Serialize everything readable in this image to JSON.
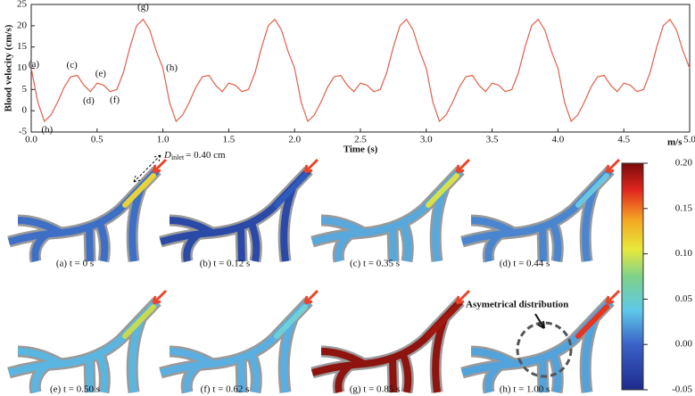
{
  "chart_data": {
    "type": "line",
    "x_label": "Time (s)",
    "y_label": "Blood velocity (cm/s)",
    "color": "#e0604a",
    "x": [
      0,
      0.05,
      0.1,
      0.15,
      0.2,
      0.25,
      0.3,
      0.35,
      0.4,
      0.45,
      0.5,
      0.55,
      0.6,
      0.65,
      0.7,
      0.75,
      0.8,
      0.85,
      0.9,
      0.95,
      1,
      1.05,
      1.1,
      1.15,
      1.2,
      1.25,
      1.3,
      1.35,
      1.4,
      1.45,
      1.5,
      1.55,
      1.6,
      1.65,
      1.7,
      1.75,
      1.8,
      1.85,
      1.9,
      1.95,
      2,
      2.05,
      2.1,
      2.15,
      2.2,
      2.25,
      2.3,
      2.35,
      2.4,
      2.45,
      2.5,
      2.55,
      2.6,
      2.65,
      2.7,
      2.75,
      2.8,
      2.85,
      2.9,
      2.95,
      3,
      3.05,
      3.1,
      3.15,
      3.2,
      3.25,
      3.3,
      3.35,
      3.4,
      3.45,
      3.5,
      3.55,
      3.6,
      3.65,
      3.7,
      3.75,
      3.8,
      3.85,
      3.9,
      3.95,
      4,
      4.05,
      4.1,
      4.15,
      4.2,
      4.25,
      4.3,
      4.35,
      4.4,
      4.45,
      4.5,
      4.55,
      4.6,
      4.65,
      4.7,
      4.75,
      4.8,
      4.85,
      4.9,
      4.95,
      5
    ],
    "values": [
      10,
      2,
      -2.5,
      -1,
      2,
      5.5,
      8,
      8.3,
      6,
      4.5,
      6.5,
      6,
      4.5,
      5,
      9,
      15,
      20,
      21.5,
      19,
      14,
      10,
      2,
      -2.5,
      -1,
      2,
      5.5,
      8,
      8.3,
      6,
      4.5,
      6.5,
      6,
      4.5,
      5,
      9,
      15,
      20,
      21.5,
      19,
      14,
      10,
      2,
      -2.5,
      -1,
      2,
      5.5,
      8,
      8.3,
      6,
      4.5,
      6.5,
      6,
      4.5,
      5,
      9,
      15,
      20,
      21.5,
      19,
      14,
      10,
      2,
      -2.5,
      -1,
      2,
      5.5,
      8,
      8.3,
      6,
      4.5,
      6.5,
      6,
      4.5,
      5,
      9,
      15,
      20,
      21.5,
      19,
      14,
      10,
      2,
      -2.5,
      -1,
      2,
      5.5,
      8,
      8.3,
      6,
      4.5,
      6.5,
      6,
      4.5,
      5,
      9,
      15,
      20,
      21.5,
      19,
      14,
      10
    ],
    "xlim": [
      0,
      5
    ],
    "ylim": [
      -5,
      25
    ],
    "xticks": [
      {
        "value": 0,
        "label": "0.0"
      },
      0.5,
      {
        "value": 1,
        "label": "1.0"
      },
      1.5,
      {
        "value": 2,
        "label": "2.0"
      },
      2.5,
      {
        "value": 3,
        "label": "3.0"
      },
      3.5,
      {
        "value": 4,
        "label": "4.0"
      },
      4.5,
      {
        "value": 5,
        "label": "5.0"
      }
    ],
    "yticks": [
      -5,
      0,
      5,
      10,
      15,
      20,
      25
    ],
    "annotations": [
      {
        "label": "(a)",
        "x": 0,
        "y": 10
      },
      {
        "label": "(b)",
        "x": 0.1,
        "y": -2.5
      },
      {
        "label": "(c)",
        "x": 0.35,
        "y": 8.3
      },
      {
        "label": "(d)",
        "x": 0.45,
        "y": 4.5
      },
      {
        "label": "(e)",
        "x": 0.5,
        "y": 6.5
      },
      {
        "label": "(f)",
        "x": 0.6,
        "y": 4.5
      },
      {
        "label": "(g)",
        "x": 0.85,
        "y": 21.5
      },
      {
        "label": "(h)",
        "x": 1,
        "y": 10
      }
    ]
  },
  "inlet_annotation": {
    "symbol": "D",
    "subscript": "inlet",
    "text": "= 0.40 cm"
  },
  "asymmetry_annotation": "Asymetrical distribution",
  "panels": [
    "(a) t = 0 s",
    "(b) t = 0.12 s",
    "(c) t = 0.35 s",
    "(d) t = 0.44 s",
    "(e) t = 0.50 s",
    "(f) t = 0.62 s",
    "(g) t = 0.85 s",
    "(h) t = 1.00 s"
  ],
  "colorbar": {
    "unit": "m/s",
    "lim": [
      -0.05,
      0.2
    ],
    "ticks": [
      {
        "value": 0.2,
        "label": "0.20"
      },
      0.15,
      {
        "value": 0.1,
        "label": "0.10"
      },
      0.05,
      {
        "value": 0,
        "label": "0.00"
      },
      -0.05
    ]
  }
}
